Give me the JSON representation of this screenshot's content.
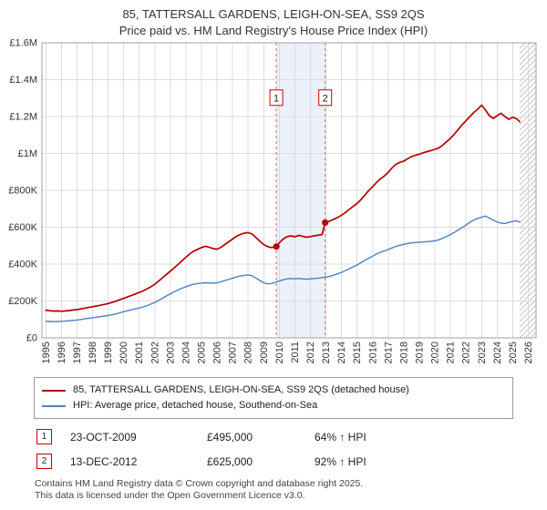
{
  "title": {
    "line1": "85, TATTERSALL GARDENS, LEIGH-ON-SEA, SS9 2QS",
    "line2": "Price paid vs. HM Land Registry's House Price Index (HPI)"
  },
  "legend": {
    "series1": "85, TATTERSALL GARDENS, LEIGH-ON-SEA, SS9 2QS (detached house)",
    "series2": "HPI: Average price, detached house, Southend-on-Sea"
  },
  "transactions": [
    {
      "num": "1",
      "date": "23-OCT-2009",
      "price": "£495,000",
      "hpi": "64% ↑ HPI"
    },
    {
      "num": "2",
      "date": "13-DEC-2012",
      "price": "£625,000",
      "hpi": "92% ↑ HPI"
    }
  ],
  "footer": {
    "line1": "Contains HM Land Registry data © Crown copyright and database right 2025.",
    "line2": "This data is licensed under the Open Government Licence v3.0."
  },
  "chart_data": {
    "type": "line",
    "title": "85, TATTERSALL GARDENS, LEIGH-ON-SEA, SS9 2QS",
    "subtitle": "Price paid vs. HM Land Registry's House Price Index (HPI)",
    "x_range": [
      1994.75,
      2026.5
    ],
    "y_range": [
      0,
      1600
    ],
    "y_unit": "£ thousands",
    "grid": true,
    "legend_position": "bottom",
    "x_ticks": [
      1995,
      1996,
      1997,
      1998,
      1999,
      2000,
      2001,
      2002,
      2003,
      2004,
      2005,
      2006,
      2007,
      2008,
      2009,
      2010,
      2011,
      2012,
      2013,
      2014,
      2015,
      2016,
      2017,
      2018,
      2019,
      2020,
      2021,
      2022,
      2023,
      2024,
      2025,
      2026
    ],
    "y_ticks": [
      {
        "v": 0,
        "label": "£0"
      },
      {
        "v": 200,
        "label": "£200K"
      },
      {
        "v": 400,
        "label": "£400K"
      },
      {
        "v": 600,
        "label": "£600K"
      },
      {
        "v": 800,
        "label": "£800K"
      },
      {
        "v": 1000,
        "label": "£1M"
      },
      {
        "v": 1200,
        "label": "£1.2M"
      },
      {
        "v": 1400,
        "label": "£1.4M"
      },
      {
        "v": 1600,
        "label": "£1.6M"
      }
    ],
    "band": [
      2009.81,
      2012.95
    ],
    "band_color": "#dde8f6",
    "hatch_start": 2025.45,
    "marker_label_y": 1300,
    "markers": [
      {
        "x": 2009.81,
        "y": 495,
        "label": "1"
      },
      {
        "x": 2012.95,
        "y": 625,
        "label": "2"
      }
    ],
    "series": [
      {
        "name": "HPI: Average price, detached house, Southend-on-Sea",
        "color": "#4f81bd",
        "points": [
          [
            1995,
            90
          ],
          [
            1995.25,
            89
          ],
          [
            1995.5,
            88
          ],
          [
            1995.75,
            89
          ],
          [
            1996,
            90
          ],
          [
            1996.25,
            91
          ],
          [
            1996.5,
            93
          ],
          [
            1996.75,
            95
          ],
          [
            1997,
            97
          ],
          [
            1997.25,
            100
          ],
          [
            1997.5,
            103
          ],
          [
            1997.75,
            106
          ],
          [
            1998,
            109
          ],
          [
            1998.25,
            112
          ],
          [
            1998.5,
            115
          ],
          [
            1998.75,
            118
          ],
          [
            1999,
            121
          ],
          [
            1999.25,
            125
          ],
          [
            1999.5,
            130
          ],
          [
            1999.75,
            136
          ],
          [
            2000,
            142
          ],
          [
            2000.25,
            147
          ],
          [
            2000.5,
            152
          ],
          [
            2000.75,
            157
          ],
          [
            2001,
            162
          ],
          [
            2001.25,
            168
          ],
          [
            2001.5,
            175
          ],
          [
            2001.75,
            183
          ],
          [
            2002,
            192
          ],
          [
            2002.25,
            203
          ],
          [
            2002.5,
            215
          ],
          [
            2002.75,
            227
          ],
          [
            2003,
            239
          ],
          [
            2003.25,
            250
          ],
          [
            2003.5,
            260
          ],
          [
            2003.75,
            269
          ],
          [
            2004,
            277
          ],
          [
            2004.25,
            285
          ],
          [
            2004.5,
            291
          ],
          [
            2004.75,
            295
          ],
          [
            2005,
            297
          ],
          [
            2005.25,
            299
          ],
          [
            2005.5,
            298
          ],
          [
            2005.75,
            297
          ],
          [
            2006,
            299
          ],
          [
            2006.25,
            304
          ],
          [
            2006.5,
            311
          ],
          [
            2006.75,
            317
          ],
          [
            2007,
            324
          ],
          [
            2007.25,
            331
          ],
          [
            2007.5,
            336
          ],
          [
            2007.75,
            339
          ],
          [
            2008,
            341
          ],
          [
            2008.25,
            337
          ],
          [
            2008.5,
            325
          ],
          [
            2008.75,
            311
          ],
          [
            2009,
            299
          ],
          [
            2009.25,
            293
          ],
          [
            2009.5,
            295
          ],
          [
            2009.75,
            301
          ],
          [
            2010,
            308
          ],
          [
            2010.25,
            315
          ],
          [
            2010.5,
            320
          ],
          [
            2010.75,
            322
          ],
          [
            2011,
            320
          ],
          [
            2011.25,
            322
          ],
          [
            2011.5,
            320
          ],
          [
            2011.75,
            318
          ],
          [
            2012,
            320
          ],
          [
            2012.25,
            322
          ],
          [
            2012.5,
            324
          ],
          [
            2012.75,
            327
          ],
          [
            2013,
            330
          ],
          [
            2013.25,
            334
          ],
          [
            2013.5,
            340
          ],
          [
            2013.75,
            347
          ],
          [
            2014,
            355
          ],
          [
            2014.25,
            365
          ],
          [
            2014.5,
            375
          ],
          [
            2014.75,
            385
          ],
          [
            2015,
            395
          ],
          [
            2015.25,
            408
          ],
          [
            2015.5,
            420
          ],
          [
            2015.75,
            432
          ],
          [
            2016,
            443
          ],
          [
            2016.25,
            455
          ],
          [
            2016.5,
            464
          ],
          [
            2016.75,
            471
          ],
          [
            2017,
            479
          ],
          [
            2017.25,
            488
          ],
          [
            2017.5,
            496
          ],
          [
            2017.75,
            502
          ],
          [
            2018,
            507
          ],
          [
            2018.25,
            512
          ],
          [
            2018.5,
            515
          ],
          [
            2018.75,
            517
          ],
          [
            2019,
            518
          ],
          [
            2019.25,
            520
          ],
          [
            2019.5,
            522
          ],
          [
            2019.75,
            524
          ],
          [
            2020,
            526
          ],
          [
            2020.25,
            532
          ],
          [
            2020.5,
            540
          ],
          [
            2020.75,
            550
          ],
          [
            2021,
            560
          ],
          [
            2021.25,
            572
          ],
          [
            2021.5,
            585
          ],
          [
            2021.75,
            598
          ],
          [
            2022,
            612
          ],
          [
            2022.25,
            627
          ],
          [
            2022.5,
            639
          ],
          [
            2022.75,
            648
          ],
          [
            2023,
            655
          ],
          [
            2023.25,
            660
          ],
          [
            2023.5,
            650
          ],
          [
            2023.75,
            638
          ],
          [
            2024,
            628
          ],
          [
            2024.25,
            622
          ],
          [
            2024.5,
            620
          ],
          [
            2024.75,
            626
          ],
          [
            2025,
            631
          ],
          [
            2025.25,
            635
          ],
          [
            2025.45,
            628
          ]
        ]
      },
      {
        "name": "85, TATTERSALL GARDENS, LEIGH-ON-SEA, SS9 2QS (detached house)",
        "color": "#b40000",
        "points": [
          [
            1995,
            150
          ],
          [
            1995.25,
            147
          ],
          [
            1995.5,
            145
          ],
          [
            1995.75,
            146
          ],
          [
            1996,
            144
          ],
          [
            1996.25,
            146
          ],
          [
            1996.5,
            148
          ],
          [
            1996.75,
            151
          ],
          [
            1997,
            153
          ],
          [
            1997.25,
            157
          ],
          [
            1997.5,
            161
          ],
          [
            1997.75,
            165
          ],
          [
            1998,
            169
          ],
          [
            1998.25,
            173
          ],
          [
            1998.5,
            177
          ],
          [
            1998.75,
            181
          ],
          [
            1999,
            186
          ],
          [
            1999.25,
            192
          ],
          [
            1999.5,
            199
          ],
          [
            1999.75,
            207
          ],
          [
            2000,
            214
          ],
          [
            2000.25,
            222
          ],
          [
            2000.5,
            230
          ],
          [
            2000.75,
            238
          ],
          [
            2001,
            246
          ],
          [
            2001.25,
            255
          ],
          [
            2001.5,
            265
          ],
          [
            2001.75,
            277
          ],
          [
            2002,
            291
          ],
          [
            2002.25,
            308
          ],
          [
            2002.5,
            326
          ],
          [
            2002.75,
            344
          ],
          [
            2003,
            362
          ],
          [
            2003.25,
            380
          ],
          [
            2003.5,
            399
          ],
          [
            2003.75,
            418
          ],
          [
            2004,
            437
          ],
          [
            2004.25,
            456
          ],
          [
            2004.5,
            470
          ],
          [
            2004.75,
            480
          ],
          [
            2005,
            490
          ],
          [
            2005.25,
            497
          ],
          [
            2005.5,
            491
          ],
          [
            2005.75,
            484
          ],
          [
            2006,
            481
          ],
          [
            2006.25,
            491
          ],
          [
            2006.5,
            506
          ],
          [
            2006.75,
            521
          ],
          [
            2007,
            536
          ],
          [
            2007.25,
            551
          ],
          [
            2007.5,
            561
          ],
          [
            2007.75,
            568
          ],
          [
            2008,
            571
          ],
          [
            2008.25,
            563
          ],
          [
            2008.5,
            544
          ],
          [
            2008.75,
            524
          ],
          [
            2009,
            506
          ],
          [
            2009.25,
            495
          ],
          [
            2009.5,
            490
          ],
          [
            2009.81,
            495
          ],
          [
            2010,
            515
          ],
          [
            2010.25,
            536
          ],
          [
            2010.5,
            549
          ],
          [
            2010.75,
            553
          ],
          [
            2011,
            548
          ],
          [
            2011.25,
            556
          ],
          [
            2011.5,
            551
          ],
          [
            2011.75,
            545
          ],
          [
            2012,
            549
          ],
          [
            2012.25,
            553
          ],
          [
            2012.5,
            557
          ],
          [
            2012.75,
            560
          ],
          [
            2012.95,
            625
          ],
          [
            2013,
            626
          ],
          [
            2013.25,
            634
          ],
          [
            2013.5,
            643
          ],
          [
            2013.75,
            653
          ],
          [
            2014,
            665
          ],
          [
            2014.25,
            680
          ],
          [
            2014.5,
            697
          ],
          [
            2014.75,
            713
          ],
          [
            2015,
            729
          ],
          [
            2015.25,
            750
          ],
          [
            2015.5,
            774
          ],
          [
            2015.75,
            799
          ],
          [
            2016,
            820
          ],
          [
            2016.25,
            843
          ],
          [
            2016.5,
            862
          ],
          [
            2016.75,
            878
          ],
          [
            2017,
            898
          ],
          [
            2017.25,
            922
          ],
          [
            2017.5,
            941
          ],
          [
            2017.75,
            952
          ],
          [
            2018,
            958
          ],
          [
            2018.25,
            972
          ],
          [
            2018.5,
            983
          ],
          [
            2018.75,
            990
          ],
          [
            2019,
            996
          ],
          [
            2019.25,
            1004
          ],
          [
            2019.5,
            1010
          ],
          [
            2019.75,
            1016
          ],
          [
            2020,
            1022
          ],
          [
            2020.25,
            1030
          ],
          [
            2020.5,
            1045
          ],
          [
            2020.75,
            1063
          ],
          [
            2021,
            1082
          ],
          [
            2021.25,
            1105
          ],
          [
            2021.5,
            1130
          ],
          [
            2021.75,
            1155
          ],
          [
            2022,
            1178
          ],
          [
            2022.25,
            1200
          ],
          [
            2022.5,
            1222
          ],
          [
            2022.75,
            1240
          ],
          [
            2023,
            1262
          ],
          [
            2023.25,
            1235
          ],
          [
            2023.5,
            1205
          ],
          [
            2023.75,
            1190
          ],
          [
            2024,
            1205
          ],
          [
            2024.25,
            1218
          ],
          [
            2024.5,
            1200
          ],
          [
            2024.75,
            1185
          ],
          [
            2025,
            1196
          ],
          [
            2025.25,
            1188
          ],
          [
            2025.45,
            1172
          ]
        ]
      }
    ]
  }
}
